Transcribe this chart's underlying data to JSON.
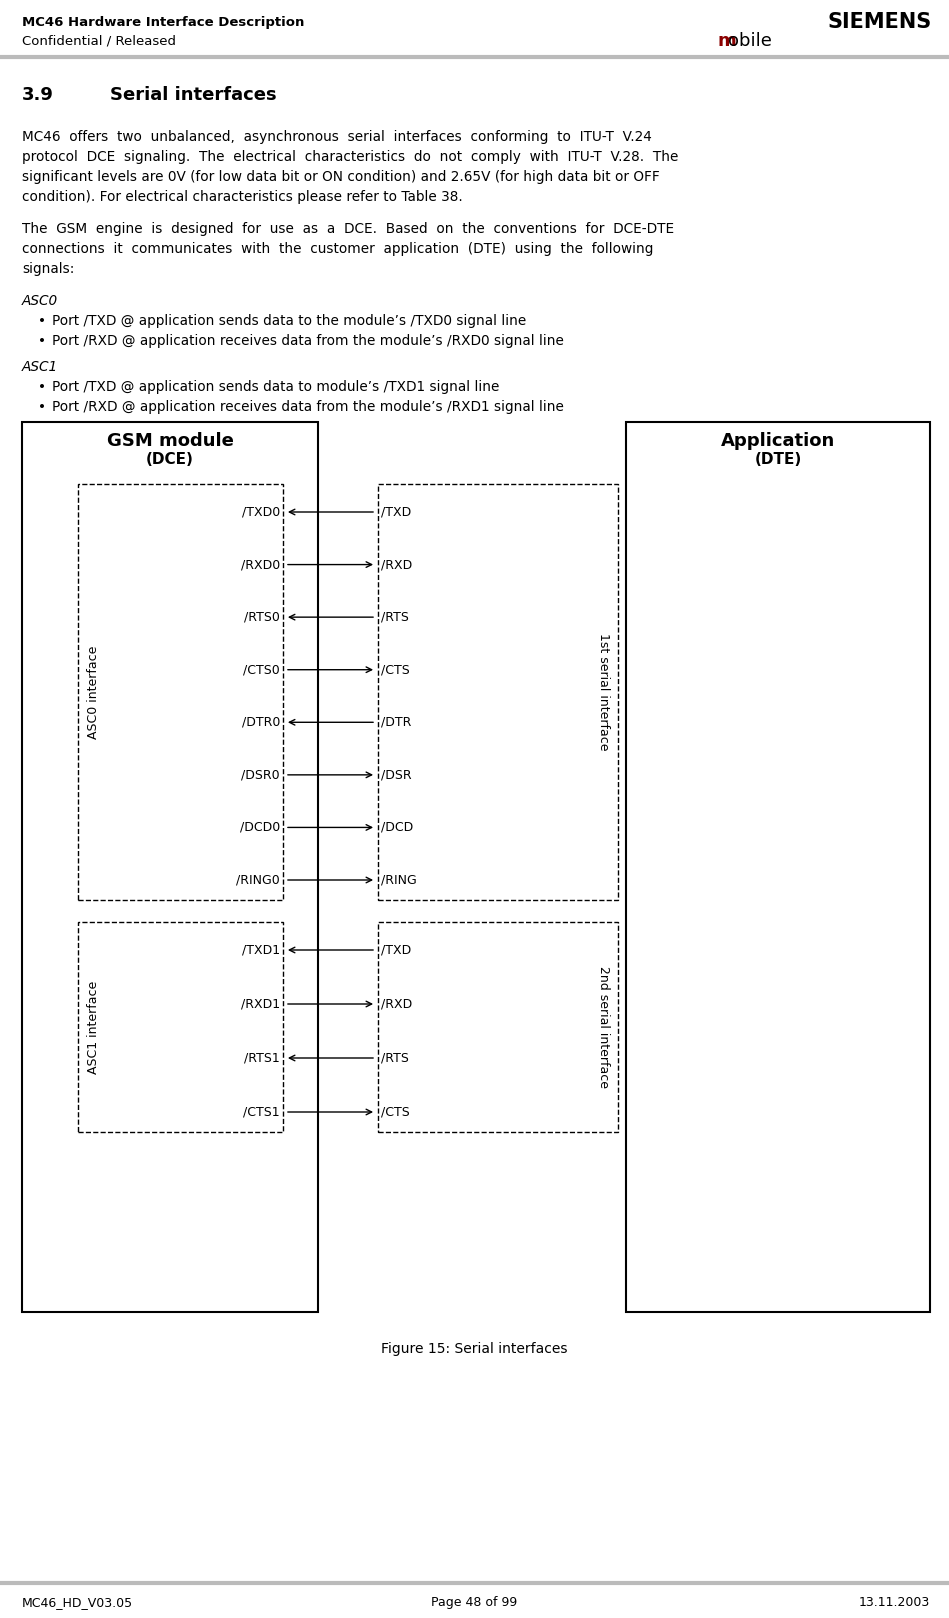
{
  "header_left_line1": "MC46 Hardware Interface Description",
  "header_left_line2": "Confidential / Released",
  "header_right_line1": "SIEMENS",
  "header_right_m": "m",
  "header_right_obile": "obile",
  "footer_left": "MC46_HD_V03.05",
  "footer_center": "Page 48 of 99",
  "footer_right": "13.11.2003",
  "section_number": "3.9",
  "section_title": "Serial interfaces",
  "para1_lines": [
    "MC46  offers  two  unbalanced,  asynchronous  serial  interfaces  conforming  to  ITU-T  V.24",
    "protocol  DCE  signaling.  The  electrical  characteristics  do  not  comply  with  ITU-T  V.28.  The",
    "significant levels are 0V (for low data bit or ON condition) and 2.65V (for high data bit or OFF",
    "condition). For electrical characteristics please refer to Table 38."
  ],
  "para2_lines": [
    "The  GSM  engine  is  designed  for  use  as  a  DCE.  Based  on  the  conventions  for  DCE-DTE",
    "connections  it  communicates  with  the  customer  application  (DTE)  using  the  following",
    "signals:"
  ],
  "asc0_title": "ASC0",
  "asc0_bullet1": "Port /TXD @ application sends data to the module’s /TXD0 signal line",
  "asc0_bullet2": "Port /RXD @ application receives data from the module’s /RXD0 signal line",
  "asc1_title": "ASC1",
  "asc1_bullet1": "Port /TXD @ application sends data to module’s /TXD1 signal line",
  "asc1_bullet2": "Port /RXD @ application receives data from the module’s /RXD1 signal line",
  "figure_caption": "Figure 15: Serial interfaces",
  "gsm_title": "GSM module",
  "gsm_subtitle": "(DCE)",
  "app_title": "Application",
  "app_subtitle": "(DTE)",
  "asc0_label": "ASC0 interface",
  "asc1_label": "ASC1 interface",
  "serial1_label": "1st serial interface",
  "serial2_label": "2nd serial interface",
  "asc0_signals_left": [
    "/TXD0",
    "/RXD0",
    "/RTS0",
    "/CTS0",
    "/DTR0",
    "/DSR0",
    "/DCD0",
    "/RING0"
  ],
  "asc1_signals_left": [
    "/TXD1",
    "/RXD1",
    "/RTS1",
    "/CTS1"
  ],
  "signals_right_asc0": [
    "/TXD",
    "/RXD",
    "/RTS",
    "/CTS",
    "/DTR",
    "/DSR",
    "/DCD",
    "/RING"
  ],
  "signals_right_asc1": [
    "/TXD",
    "/RXD",
    "/RTS",
    "/CTS"
  ],
  "arrow_directions_asc0": [
    "left",
    "right",
    "left",
    "right",
    "left",
    "right",
    "right",
    "right"
  ],
  "arrow_directions_asc1": [
    "left",
    "right",
    "left",
    "right"
  ],
  "bg_color": "#ffffff",
  "header_sep_color": "#bbbbbb",
  "dark_red": "#8B0000"
}
